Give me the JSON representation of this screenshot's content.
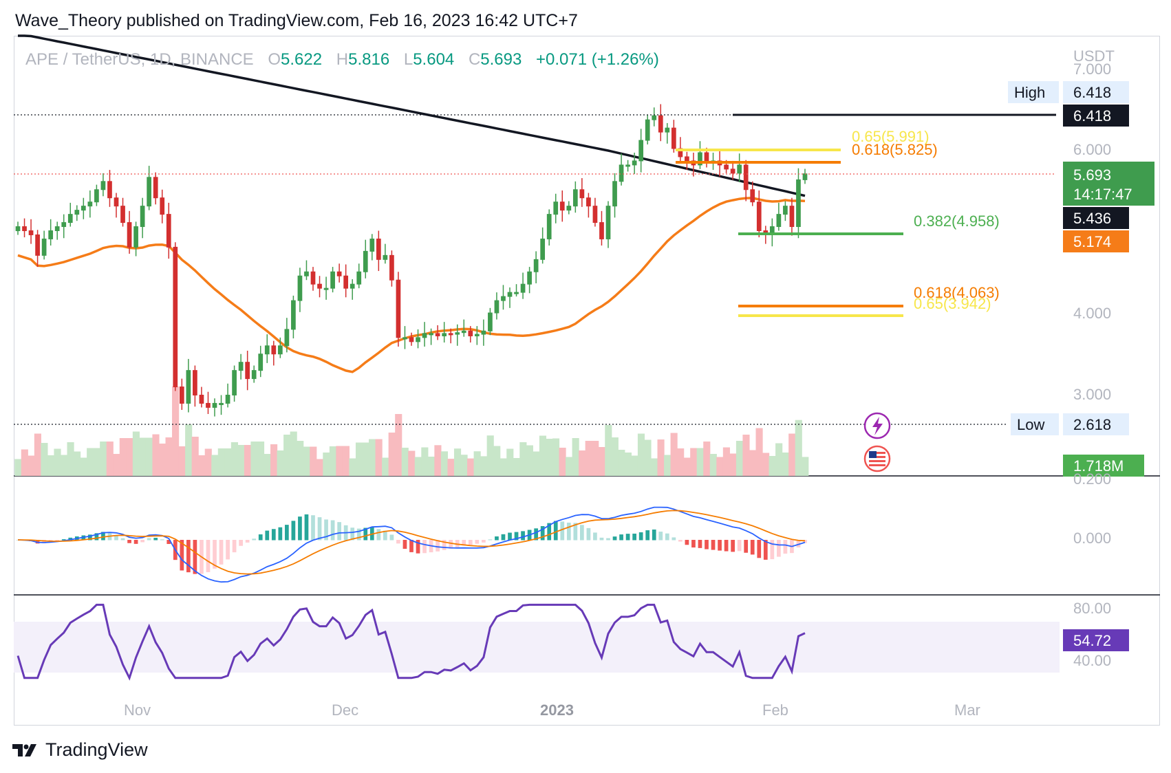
{
  "header": {
    "publisher_line": "Wave_Theory published on TradingView.com, Feb 16, 2023 16:42 UTC+7"
  },
  "footer": {
    "brand": "TradingView",
    "logo_icon": "tradingview-logo-icon"
  },
  "colors": {
    "up": "#26a69a",
    "up_body": "#3f9c4e",
    "down": "#ef5350",
    "down_body": "#d32f2f",
    "ma_black": "#131722",
    "ma_orange": "#f57c18",
    "fib_yellow": "#f7e64a",
    "fib_orange": "#f57c00",
    "fib_green": "#4caf50",
    "rsi": "#673ab7",
    "macd_line": "#2962ff",
    "signal_line": "#f57c00"
  },
  "chart_data": {
    "type": "candlestick",
    "symbol": "APE / TetherUS, 1D, BINANCE",
    "ohlc_label": {
      "o_label": "O",
      "o": "5.622",
      "h_label": "H",
      "h": "5.816",
      "l_label": "L",
      "l": "5.604",
      "c_label": "C",
      "c": "5.693",
      "change": "+0.071 (+1.26%)"
    },
    "currency": "USDT",
    "price_axis": {
      "ticks": [
        "7.000",
        "6.000",
        "4.000",
        "3.000"
      ],
      "tick_values": [
        7.0,
        6.0,
        4.0,
        3.0
      ]
    },
    "time_axis": {
      "ticks": [
        "Nov",
        "Dec",
        "2023",
        "Feb",
        "Mar"
      ]
    },
    "high": {
      "label": "High",
      "value": "6.418"
    },
    "low": {
      "label": "Low",
      "value": "2.618"
    },
    "price_labels": {
      "last_price": "5.693",
      "countdown": "14:17:47",
      "high_line": "6.418",
      "ma_200": "5.436",
      "ma_50": "5.174",
      "volume": "1.718M"
    },
    "fib_levels": [
      {
        "label": "0.65(5.991)",
        "value": 5.991,
        "color": "#f7e64a"
      },
      {
        "label": "0.618(5.825)",
        "value": 5.825,
        "color": "#f57c00"
      },
      {
        "label": "0.382(4.958)",
        "value": 4.958,
        "color": "#4caf50"
      },
      {
        "label": "0.618(4.063)",
        "value": 4.063,
        "color": "#f57c00"
      },
      {
        "label": "0.65(3.942)",
        "value": 3.942,
        "color": "#f7e64a"
      }
    ],
    "close_series": [
      5.05,
      5.0,
      4.95,
      4.7,
      4.9,
      5.0,
      5.05,
      5.1,
      5.2,
      5.25,
      5.3,
      5.35,
      5.5,
      5.6,
      5.4,
      5.3,
      5.1,
      4.8,
      5.05,
      5.3,
      5.65,
      5.4,
      5.2,
      4.8,
      3.1,
      2.9,
      3.3,
      3.0,
      2.9,
      2.85,
      2.9,
      2.9,
      3.0,
      3.3,
      3.4,
      3.2,
      3.3,
      3.5,
      3.6,
      3.5,
      3.6,
      3.8,
      4.15,
      4.45,
      4.5,
      4.35,
      4.3,
      4.3,
      4.5,
      4.45,
      4.3,
      4.35,
      4.5,
      4.75,
      4.9,
      4.65,
      4.7,
      4.4,
      3.7,
      3.7,
      3.65,
      3.7,
      3.75,
      3.75,
      3.72,
      3.75,
      3.74,
      3.76,
      3.78,
      3.72,
      3.74,
      3.78,
      4.0,
      4.15,
      4.2,
      4.25,
      4.25,
      4.35,
      4.5,
      4.65,
      4.9,
      5.2,
      5.35,
      5.25,
      5.3,
      5.5,
      5.4,
      5.3,
      5.1,
      4.9,
      5.3,
      5.6,
      5.8,
      5.8,
      5.85,
      6.1,
      6.35,
      6.4,
      6.2,
      6.25,
      6.0,
      5.9,
      5.85,
      5.8,
      5.95,
      5.85,
      5.85,
      5.8,
      5.75,
      5.7,
      5.8,
      5.5,
      5.35,
      5.0,
      4.95,
      5.05,
      5.2,
      5.3,
      5.05,
      5.62,
      5.693
    ],
    "rsi": {
      "value": "54.72",
      "ticks": [
        "80.00",
        "40.00"
      ],
      "tick_values": [
        80,
        40
      ]
    },
    "macd": {
      "ticks": [
        "0.200",
        "0.000"
      ],
      "tick_values": [
        0.2,
        0.0
      ]
    }
  }
}
